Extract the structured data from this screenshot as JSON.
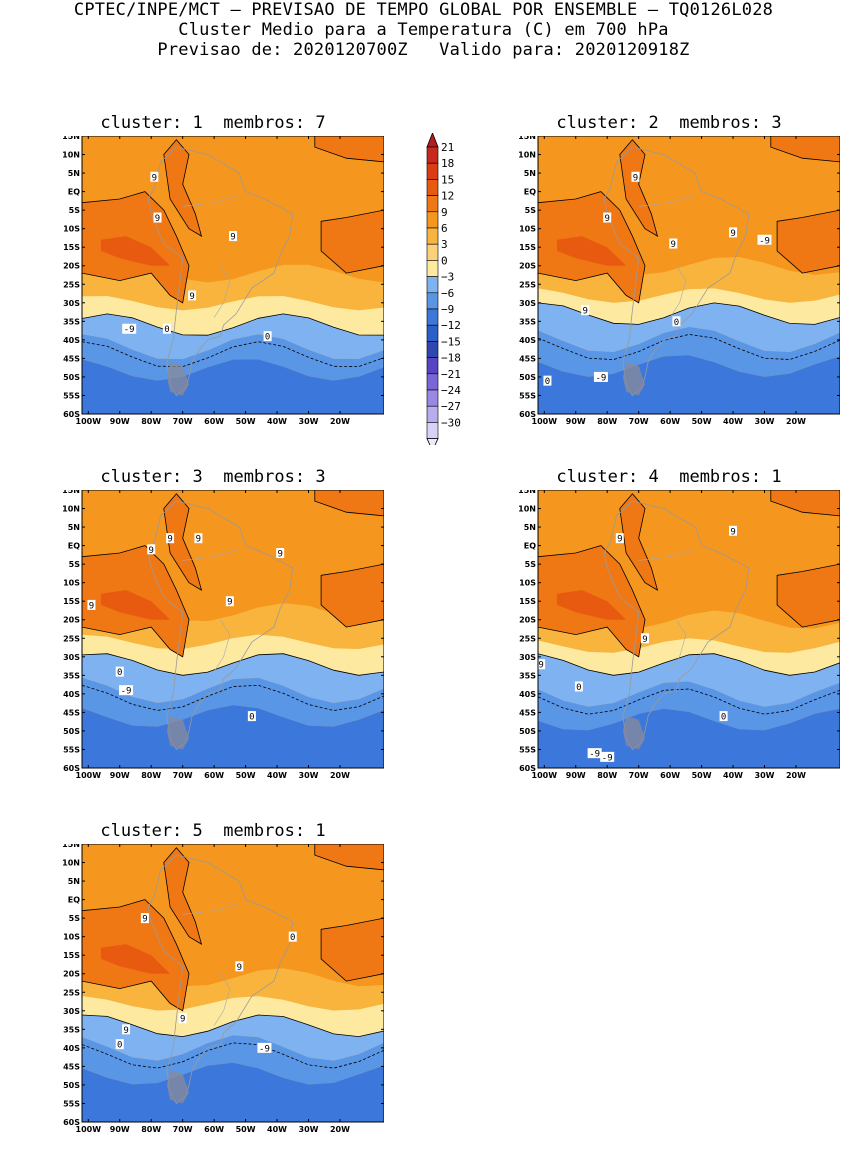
{
  "header": {
    "line1": "CPTEC/INPE/MCT – PREVISAO DE TEMPO GLOBAL POR ENSEMBLE – TQ0126L028",
    "line2": "Cluster Medio para a Temperatura (C) em 700 hPa",
    "line3": "Previsao de: 2020120700Z   Valido para: 2020120918Z"
  },
  "panels": [
    {
      "title": "cluster: 1  membros: 7"
    },
    {
      "title": "cluster: 2  membros: 3"
    },
    {
      "title": "cluster: 3  membros: 3"
    },
    {
      "title": "cluster: 4  membros: 1"
    },
    {
      "title": "cluster: 5  membros: 1"
    }
  ],
  "lat_labels": [
    "15N",
    "10N",
    "5N",
    "EQ",
    "5S",
    "10S",
    "15S",
    "20S",
    "25S",
    "30S",
    "35S",
    "40S",
    "45S",
    "50S",
    "55S",
    "60S"
  ],
  "lon_labels": [
    "100W",
    "90W",
    "80W",
    "70W",
    "60W",
    "50W",
    "40W",
    "30W",
    "20W"
  ],
  "colorbar": {
    "labels": [
      "21",
      "18",
      "15",
      "12",
      "9",
      "6",
      "3",
      "0",
      "-3",
      "-6",
      "-9",
      "-12",
      "-15",
      "-18",
      "-21",
      "-24",
      "-27",
      "-30"
    ],
    "colors": [
      "#c8281e",
      "#dc3c14",
      "#e85a0f",
      "#f07814",
      "#f5961e",
      "#f8b43c",
      "#fbd278",
      "#fdeaa0",
      "#7eb2f0",
      "#5a96e6",
      "#3c78dc",
      "#2a5ec8",
      "#3046b0",
      "#5544c4",
      "#7a66d8",
      "#9a88e4",
      "#b8acee",
      "#d8d2f8"
    ]
  },
  "contour_labels": {
    "c1": [
      "9",
      "9",
      "9",
      "9",
      "9",
      "-9",
      "0",
      "0"
    ],
    "c2": [
      "9",
      "9",
      "9",
      "9",
      "9",
      "0",
      "0",
      "-9",
      "-9"
    ],
    "c3": [
      "9",
      "9",
      "9",
      "9",
      "9",
      "9",
      "0",
      "-9",
      "0"
    ],
    "c4": [
      "9",
      "9",
      "9",
      "9",
      "0",
      "-9",
      "-9",
      "0"
    ],
    "c5": [
      "9",
      "9",
      "9",
      "9",
      "0",
      "-9",
      "0"
    ]
  }
}
